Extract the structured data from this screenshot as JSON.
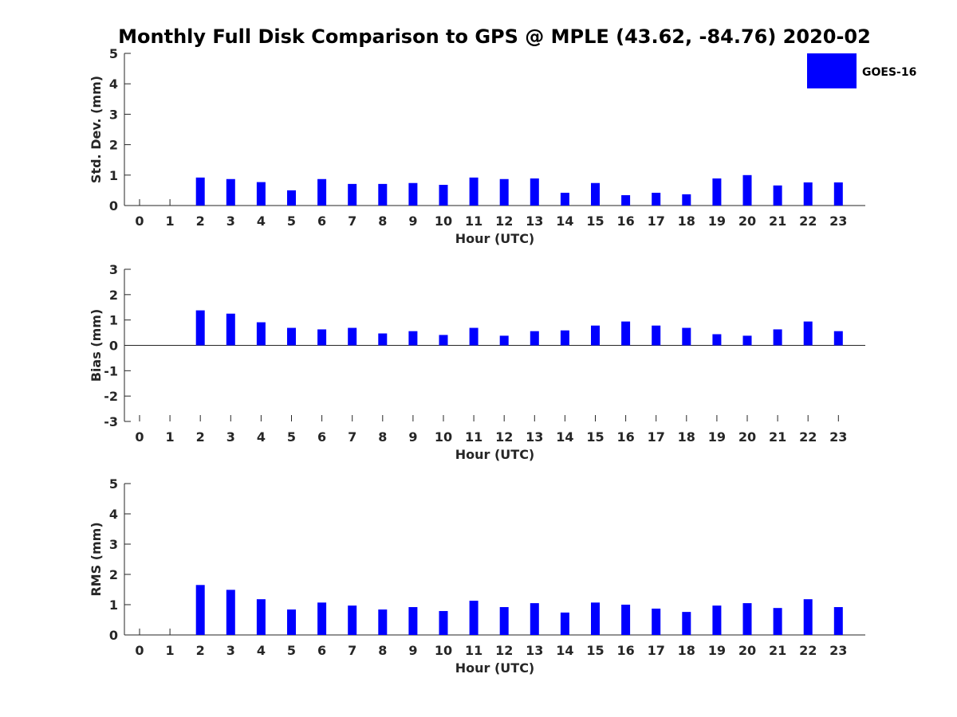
{
  "title": "Monthly Full Disk Comparison to GPS @ MPLE (43.62, -84.76) 2020-02",
  "legend": {
    "label": "GOES-16",
    "position": "top-right"
  },
  "colors": {
    "bar": "#0000ff",
    "axis": "#262626"
  },
  "chart_data": [
    {
      "type": "bar",
      "name": "std-dev",
      "title": "Monthly Full Disk Comparison to GPS @ MPLE (43.62, -84.76) 2020-02",
      "xlabel": "Hour (UTC)",
      "ylabel": "Std. Dev. (mm)",
      "ylim": [
        0,
        5
      ],
      "yticks": [
        "0",
        "1",
        "2",
        "3",
        "4",
        "5"
      ],
      "categories": [
        "0",
        "1",
        "2",
        "3",
        "4",
        "5",
        "6",
        "7",
        "8",
        "9",
        "10",
        "11",
        "12",
        "13",
        "14",
        "15",
        "16",
        "17",
        "18",
        "19",
        "20",
        "21",
        "22",
        "23"
      ],
      "series": [
        {
          "name": "GOES-16",
          "values": [
            null,
            null,
            0.92,
            0.87,
            0.77,
            0.5,
            0.87,
            0.71,
            0.71,
            0.74,
            0.68,
            0.92,
            0.87,
            0.89,
            0.42,
            0.74,
            0.34,
            0.42,
            0.37,
            0.89,
            1.0,
            0.66,
            0.76,
            0.76
          ]
        }
      ]
    },
    {
      "type": "bar",
      "name": "bias",
      "xlabel": "Hour (UTC)",
      "ylabel": "Bias (mm)",
      "ylim": [
        -3,
        3
      ],
      "yticks": [
        "-3",
        "-2",
        "-1",
        "0",
        "1",
        "2",
        "3"
      ],
      "categories": [
        "0",
        "1",
        "2",
        "3",
        "4",
        "5",
        "6",
        "7",
        "8",
        "9",
        "10",
        "11",
        "12",
        "13",
        "14",
        "15",
        "16",
        "17",
        "18",
        "19",
        "20",
        "21",
        "22",
        "23"
      ],
      "series": [
        {
          "name": "GOES-16",
          "values": [
            null,
            null,
            1.38,
            1.25,
            0.91,
            0.69,
            0.63,
            0.69,
            0.47,
            0.56,
            0.41,
            0.69,
            0.38,
            0.56,
            0.59,
            0.78,
            0.94,
            0.78,
            0.69,
            0.44,
            0.38,
            0.63,
            0.94,
            0.56
          ]
        }
      ]
    },
    {
      "type": "bar",
      "name": "rms",
      "xlabel": "Hour (UTC)",
      "ylabel": "RMS (mm)",
      "ylim": [
        0,
        5
      ],
      "yticks": [
        "0",
        "1",
        "2",
        "3",
        "4",
        "5"
      ],
      "categories": [
        "0",
        "1",
        "2",
        "3",
        "4",
        "5",
        "6",
        "7",
        "8",
        "9",
        "10",
        "11",
        "12",
        "13",
        "14",
        "15",
        "16",
        "17",
        "18",
        "19",
        "20",
        "21",
        "22",
        "23"
      ],
      "series": [
        {
          "name": "GOES-16",
          "values": [
            null,
            null,
            1.65,
            1.49,
            1.18,
            0.84,
            1.07,
            0.97,
            0.84,
            0.92,
            0.79,
            1.13,
            0.92,
            1.05,
            0.74,
            1.07,
            1.0,
            0.87,
            0.76,
            0.97,
            1.05,
            0.89,
            1.18,
            0.92
          ]
        }
      ]
    }
  ]
}
